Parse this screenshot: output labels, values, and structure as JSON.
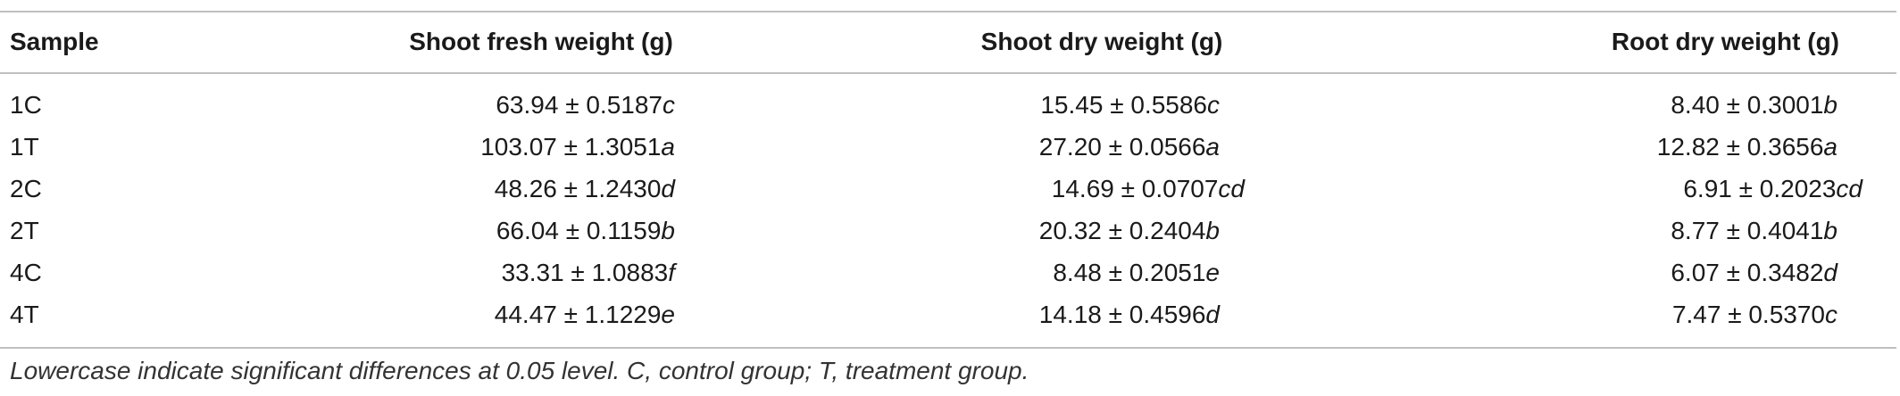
{
  "table": {
    "headers": [
      "Sample",
      "Shoot fresh weight (g)",
      "Shoot dry weight (g)",
      "Root dry weight (g)"
    ],
    "rows": [
      {
        "sample": "1C",
        "shoot_fresh": {
          "value": "63.94 ± 0.5187",
          "letter": "c"
        },
        "shoot_dry": {
          "value": "15.45 ± 0.5586",
          "letter": "c"
        },
        "root_dry": {
          "value": "8.40 ± 0.3001",
          "letter": "b"
        }
      },
      {
        "sample": "1T",
        "shoot_fresh": {
          "value": "103.07 ± 1.3051",
          "letter": "a"
        },
        "shoot_dry": {
          "value": "27.20 ± 0.0566",
          "letter": "a"
        },
        "root_dry": {
          "value": "12.82 ± 0.3656",
          "letter": "a"
        }
      },
      {
        "sample": "2C",
        "shoot_fresh": {
          "value": "48.26 ± 1.2430",
          "letter": "d"
        },
        "shoot_dry": {
          "value": "14.69 ± 0.0707",
          "letter": "cd"
        },
        "root_dry": {
          "value": "6.91 ± 0.2023",
          "letter": "cd"
        }
      },
      {
        "sample": "2T",
        "shoot_fresh": {
          "value": "66.04 ± 0.1159",
          "letter": "b"
        },
        "shoot_dry": {
          "value": "20.32 ± 0.2404",
          "letter": "b"
        },
        "root_dry": {
          "value": "8.77 ± 0.4041",
          "letter": "b"
        }
      },
      {
        "sample": "4C",
        "shoot_fresh": {
          "value": "33.31 ± 1.0883",
          "letter": "f"
        },
        "shoot_dry": {
          "value": "8.48 ± 0.2051",
          "letter": "e"
        },
        "root_dry": {
          "value": "6.07 ± 0.3482",
          "letter": "d"
        }
      },
      {
        "sample": "4T",
        "shoot_fresh": {
          "value": "44.47 ± 1.1229",
          "letter": "e"
        },
        "shoot_dry": {
          "value": "14.18 ± 0.4596",
          "letter": "d"
        },
        "root_dry": {
          "value": "7.47 ± 0.5370",
          "letter": "c"
        }
      }
    ],
    "footnote": "Lowercase indicate significant differences at 0.05 level. C, control group; T, treatment group."
  }
}
